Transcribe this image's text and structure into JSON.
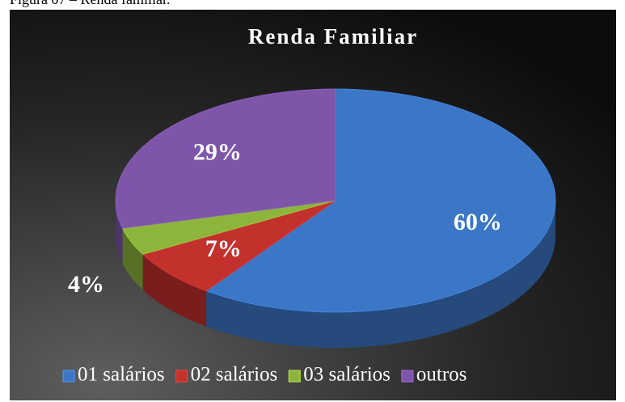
{
  "caption": "Figura 07 – Renda familiar.",
  "chart_data": {
    "type": "pie",
    "title": "Renda Familiar",
    "categories": [
      "01 salários",
      "02 salários",
      "03 salários",
      "outros"
    ],
    "values": [
      60,
      7,
      4,
      29
    ],
    "value_labels": [
      "60%",
      "7%",
      "4%",
      "29%"
    ],
    "colors": [
      "#3b77c6",
      "#c3312d",
      "#8db53b",
      "#7e56a9"
    ],
    "legend": "bottom"
  }
}
